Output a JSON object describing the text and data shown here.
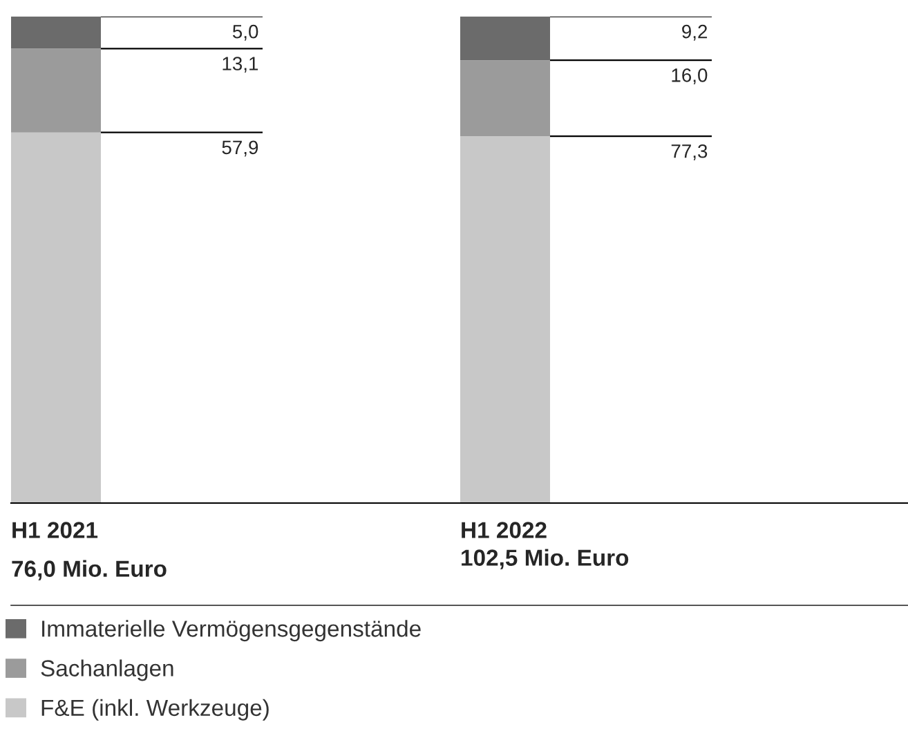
{
  "chart_data": [
    {
      "type": "bar",
      "stacked": true,
      "categories": [
        "H1 2021"
      ],
      "ylim": [
        0,
        76.0
      ],
      "series": [
        {
          "name": "F&E (inkl. Werkzeuge)",
          "color": "#c8c8c8",
          "values": [
            57.9
          ],
          "value_labels": [
            "57,9"
          ]
        },
        {
          "name": "Sachanlagen",
          "color": "#9b9b9b",
          "values": [
            13.1
          ],
          "value_labels": [
            "13,1"
          ]
        },
        {
          "name": "Immaterielle Vermögensgegenstände",
          "color": "#6b6b6b",
          "values": [
            5.0
          ],
          "value_labels": [
            "5,0"
          ]
        }
      ],
      "totals": [
        "76,0 Mio. Euro"
      ],
      "legend": "bottom"
    },
    {
      "type": "bar",
      "stacked": true,
      "categories": [
        "H1 2022"
      ],
      "ylim": [
        0,
        102.5
      ],
      "series": [
        {
          "color": "#c8c8c8",
          "values": [
            77.3
          ],
          "value_labels": [
            "77,3"
          ]
        },
        {
          "color": "#9b9b9b",
          "values": [
            16.0
          ],
          "value_labels": [
            "16,0"
          ]
        },
        {
          "color": "#6b6b6b",
          "values": [
            9.2
          ],
          "value_labels": [
            "9,2"
          ]
        }
      ],
      "totals": [
        "102,5 Mio. Euro"
      ]
    }
  ]
}
